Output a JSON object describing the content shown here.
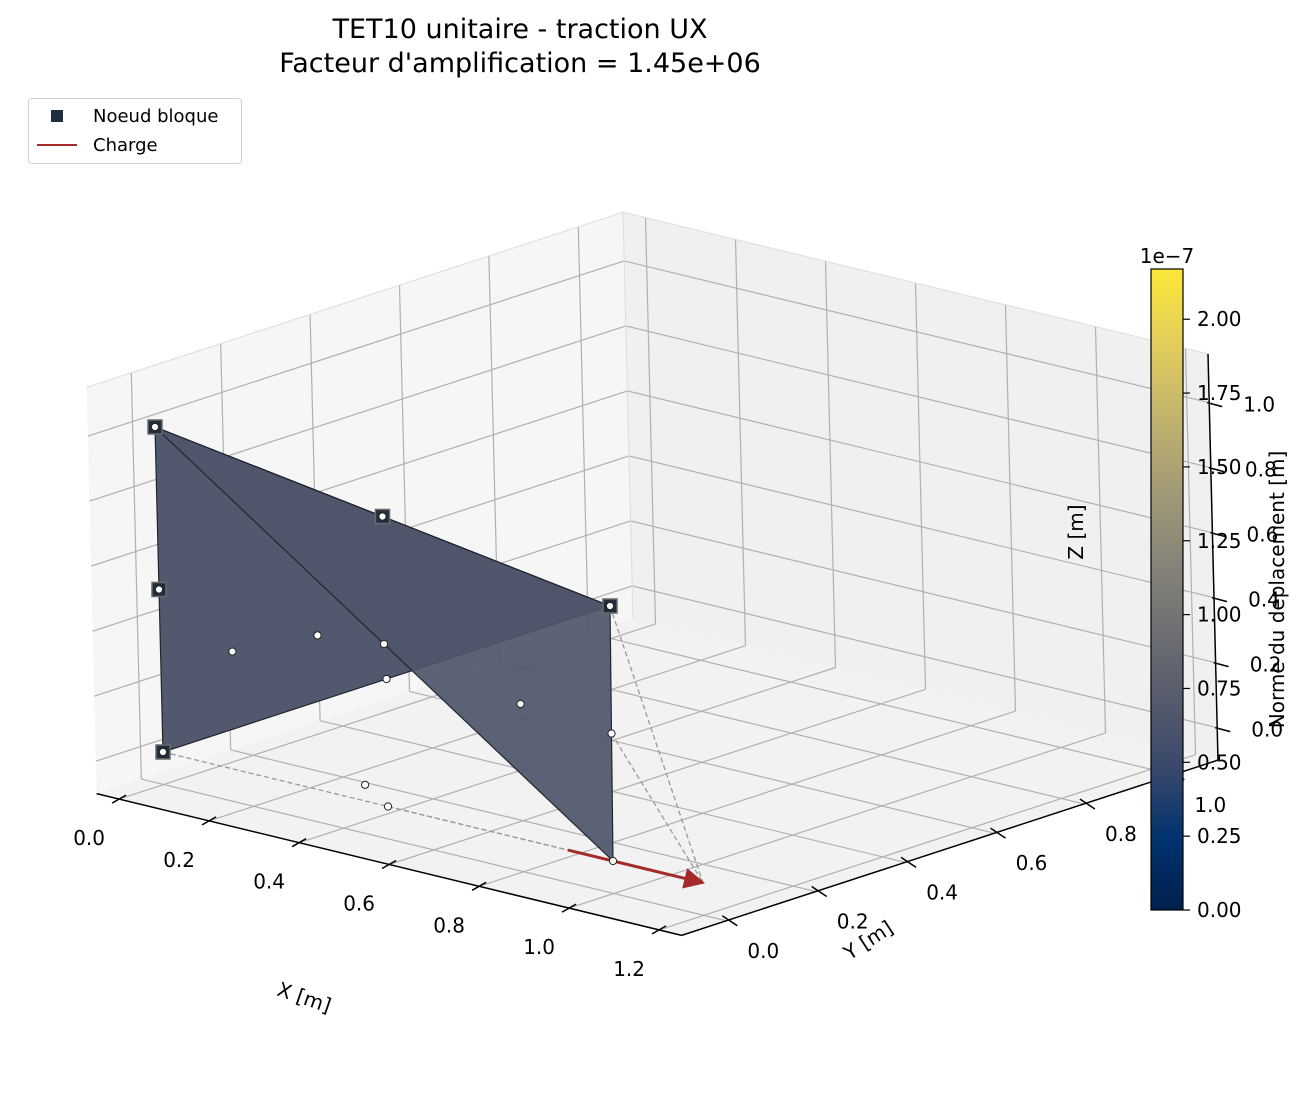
{
  "chart_data": {
    "type": "mesh3d",
    "title": "TET10 unitaire - traction UX",
    "subtitle": "Facteur d'amplification = 1.45e+06",
    "xlabel": "X [m]",
    "ylabel": "Y [m]",
    "zlabel": "Z [m]",
    "x_ticks": [
      "0.0",
      "0.2",
      "0.4",
      "0.6",
      "0.8",
      "1.0",
      "1.2"
    ],
    "y_ticks": [
      "0.0",
      "0.2",
      "0.4",
      "0.6",
      "0.8",
      "1.0"
    ],
    "z_ticks": [
      "0.0",
      "0.2",
      "0.4",
      "0.6",
      "0.8",
      "1.0"
    ],
    "xlim": [
      -0.05,
      1.25
    ],
    "ylim": [
      -0.1,
      1.1
    ],
    "zlim": [
      -0.1,
      1.15
    ],
    "grid": true,
    "legend_position": "top-left",
    "legend": [
      {
        "label": "Noeud bloque",
        "marker": "square",
        "color": "#1f2d3d"
      },
      {
        "label": "Charge",
        "marker": "line",
        "color": "#a52a2a"
      }
    ],
    "colorbar": {
      "label": "Norme du deplacement [m]",
      "multiplier": "1e−7",
      "ticks": [
        "0.00",
        "0.25",
        "0.50",
        "0.75",
        "1.00",
        "1.25",
        "1.50",
        "1.75",
        "2.00"
      ],
      "range": [
        0,
        2.17
      ],
      "colormap": "cividis",
      "colors": [
        "#00204d",
        "#00336f",
        "#39486b",
        "#575c6d",
        "#707173",
        "#8a8779",
        "#a69d75",
        "#c4b56c",
        "#e4cf5b",
        "#fde737"
      ]
    },
    "face_color": "#4f566b",
    "edge_color": "#20262e",
    "load_color": "#a52a2a",
    "nodes": [
      {
        "x": 0.0,
        "y": 0.0,
        "z": 1.0,
        "blocked": true
      },
      {
        "x": 0.0,
        "y": 0.0,
        "z": 0.5,
        "blocked": true
      },
      {
        "x": 0.0,
        "y": 0.0,
        "z": 0.0,
        "blocked": true
      },
      {
        "x": 0.0,
        "y": 0.5,
        "z": 0.5,
        "blocked": true
      },
      {
        "x": 0.0,
        "y": 1.0,
        "z": 0.0,
        "blocked": true
      },
      {
        "x": 0.5,
        "y": 0.0,
        "z": 0.0,
        "blocked": false
      },
      {
        "x": 0.5,
        "y": 0.5,
        "z": 0.0,
        "blocked": false
      },
      {
        "x": 0.0,
        "y": 0.5,
        "z": 0.0,
        "blocked": false
      },
      {
        "x": 0.5,
        "y": 0.0,
        "z": 0.5,
        "blocked": false
      },
      {
        "x": 1.0,
        "y": 0.0,
        "z": 0.0,
        "blocked": false
      }
    ],
    "load": {
      "from": [
        0.9,
        0.0,
        0.0
      ],
      "to": [
        1.2,
        0.0,
        0.0
      ]
    }
  }
}
